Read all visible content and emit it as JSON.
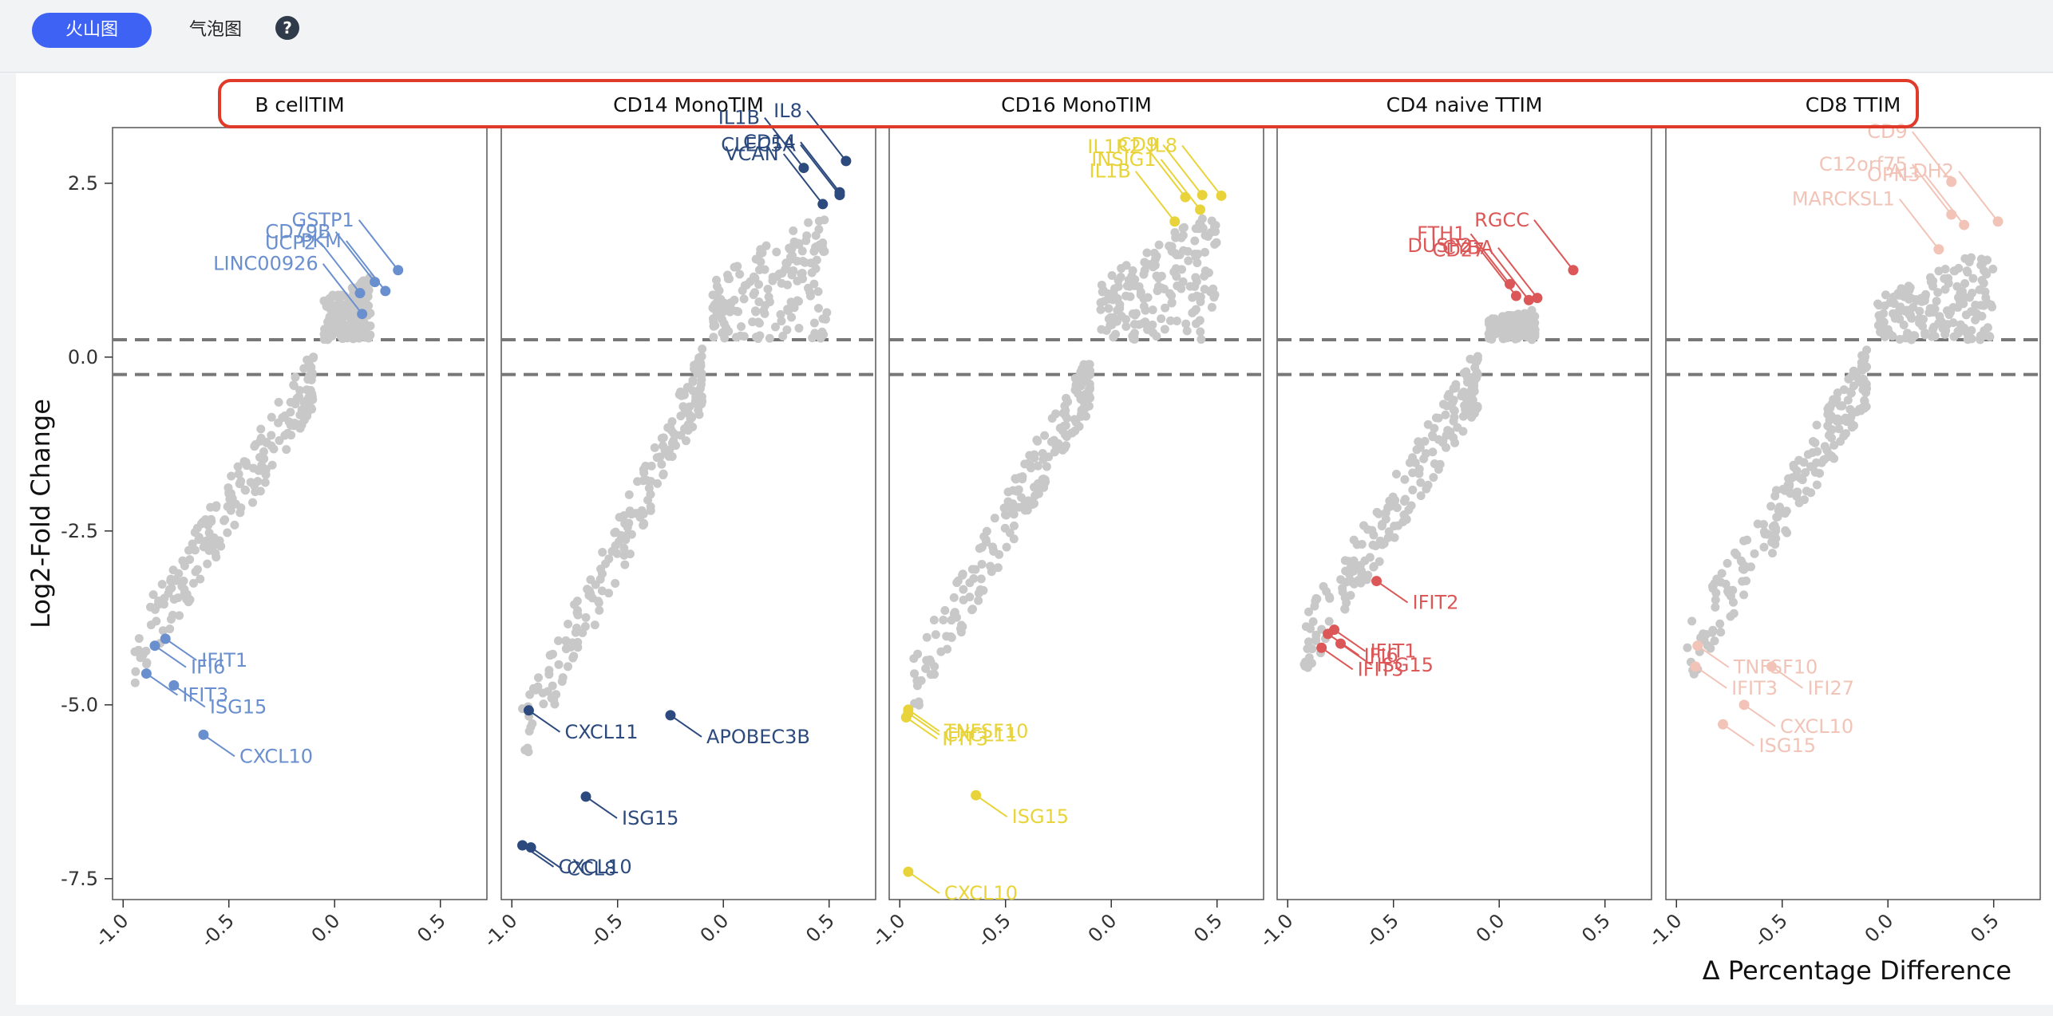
{
  "toolbar": {
    "tabs": [
      {
        "label": "火山图",
        "active": true
      },
      {
        "label": "气泡图",
        "active": false
      }
    ],
    "help_icon": "question-circle-icon",
    "help_symbol": "?"
  },
  "chart_data": {
    "type": "scatter",
    "xlabel": "Δ Percentage Difference",
    "ylabel": "Log2-Fold Change",
    "xlim": [
      -1.05,
      0.72
    ],
    "ylim": [
      -7.8,
      3.3
    ],
    "xticks": [
      -1.0,
      -0.5,
      0.0,
      0.5
    ],
    "xtick_labels": [
      "-1.0",
      "-0.5",
      "0.0",
      "0.5"
    ],
    "yticks": [
      2.5,
      0.0,
      -2.5,
      -5.0,
      -7.5
    ],
    "ytick_labels": [
      "2.5",
      "0.0",
      "-2.5",
      "-5.0",
      "-7.5"
    ],
    "threshold_lines": [
      0.25,
      -0.25
    ],
    "background_color": "#c8c8c8",
    "highlight_box_color": "#e03a2a",
    "grid": false,
    "panels": [
      {
        "title": "B cellTIM",
        "color": "#6a8fce",
        "labeled_genes": [
          {
            "gene": "GSTP1",
            "x": 0.3,
            "y": 1.25
          },
          {
            "gene": "CD79B",
            "x": 0.19,
            "y": 1.08
          },
          {
            "gene": "PKM",
            "x": 0.24,
            "y": 0.95
          },
          {
            "gene": "UCP2",
            "x": 0.12,
            "y": 0.92
          },
          {
            "gene": "LINC00926",
            "x": 0.13,
            "y": 0.62
          },
          {
            "gene": "IFIT1",
            "x": -0.8,
            "y": -4.05
          },
          {
            "gene": "IFI6",
            "x": -0.85,
            "y": -4.15
          },
          {
            "gene": "IFIT3",
            "x": -0.89,
            "y": -4.55
          },
          {
            "gene": "ISG15",
            "x": -0.76,
            "y": -4.72
          },
          {
            "gene": "CXCL10",
            "x": -0.62,
            "y": -5.43
          }
        ]
      },
      {
        "title": "CD14 MonoTIM",
        "color": "#2c4a7e",
        "labeled_genes": [
          {
            "gene": "IL8",
            "x": 0.58,
            "y": 2.82
          },
          {
            "gene": "IL1B",
            "x": 0.38,
            "y": 2.72
          },
          {
            "gene": "CD14",
            "x": 0.55,
            "y": 2.37
          },
          {
            "gene": "VCAN",
            "x": 0.47,
            "y": 2.2
          },
          {
            "gene": "CLEC5A",
            "x": 0.55,
            "y": 2.33
          },
          {
            "gene": "CXCL11",
            "x": -0.92,
            "y": -5.08
          },
          {
            "gene": "APOBEC3B",
            "x": -0.25,
            "y": -5.15
          },
          {
            "gene": "ISG15",
            "x": -0.65,
            "y": -6.32
          },
          {
            "gene": "CXCL10",
            "x": -0.95,
            "y": -7.02
          },
          {
            "gene": "CCL8",
            "x": -0.91,
            "y": -7.05
          }
        ]
      },
      {
        "title": "CD16 MonoTIM",
        "color": "#e8d43a",
        "labeled_genes": [
          {
            "gene": "IL8",
            "x": 0.52,
            "y": 2.32
          },
          {
            "gene": "CD9",
            "x": 0.43,
            "y": 2.33
          },
          {
            "gene": "IL1R2",
            "x": 0.35,
            "y": 2.3
          },
          {
            "gene": "IL1B",
            "x": 0.3,
            "y": 1.95
          },
          {
            "gene": "INSIG1",
            "x": 0.42,
            "y": 2.12
          },
          {
            "gene": "TNFSF10",
            "x": -0.96,
            "y": -5.07
          },
          {
            "gene": "IFIT3",
            "x": -0.97,
            "y": -5.18
          },
          {
            "gene": "CXCL11",
            "x": -0.96,
            "y": -5.12
          },
          {
            "gene": "ISG15",
            "x": -0.64,
            "y": -6.3
          },
          {
            "gene": "CXCL10",
            "x": -0.96,
            "y": -7.4
          }
        ]
      },
      {
        "title": "CD4 naive TTIM",
        "color": "#dc5757",
        "labeled_genes": [
          {
            "gene": "CYBA",
            "x": 0.18,
            "y": 0.85
          },
          {
            "gene": "FTH1",
            "x": 0.05,
            "y": 1.05
          },
          {
            "gene": "RGCC",
            "x": 0.35,
            "y": 1.25
          },
          {
            "gene": "DUSP2",
            "x": 0.08,
            "y": 0.88
          },
          {
            "gene": "CD27",
            "x": 0.14,
            "y": 0.82
          },
          {
            "gene": "IFIT2",
            "x": -0.58,
            "y": -3.22
          },
          {
            "gene": "IFIT1",
            "x": -0.78,
            "y": -3.92
          },
          {
            "gene": "IFI6",
            "x": -0.81,
            "y": -3.98
          },
          {
            "gene": "ISG15",
            "x": -0.75,
            "y": -4.12
          },
          {
            "gene": "IFIT3",
            "x": -0.84,
            "y": -4.18
          }
        ]
      },
      {
        "title": "CD8 TTIM",
        "color": "#f2c4b8",
        "labeled_genes": [
          {
            "gene": "CD9",
            "x": 0.3,
            "y": 2.52
          },
          {
            "gene": "C12orf75",
            "x": 0.3,
            "y": 2.05
          },
          {
            "gene": "ALDH2",
            "x": 0.52,
            "y": 1.95
          },
          {
            "gene": "OPN3",
            "x": 0.36,
            "y": 1.9
          },
          {
            "gene": "MARCKSL1",
            "x": 0.24,
            "y": 1.55
          },
          {
            "gene": "TNFSF10",
            "x": -0.9,
            "y": -4.15
          },
          {
            "gene": "IFI27",
            "x": -0.55,
            "y": -4.45
          },
          {
            "gene": "IFIT3",
            "x": -0.91,
            "y": -4.45
          },
          {
            "gene": "CXCL10",
            "x": -0.68,
            "y": -5.0
          },
          {
            "gene": "ISG15",
            "x": -0.78,
            "y": -5.28
          }
        ]
      }
    ]
  }
}
